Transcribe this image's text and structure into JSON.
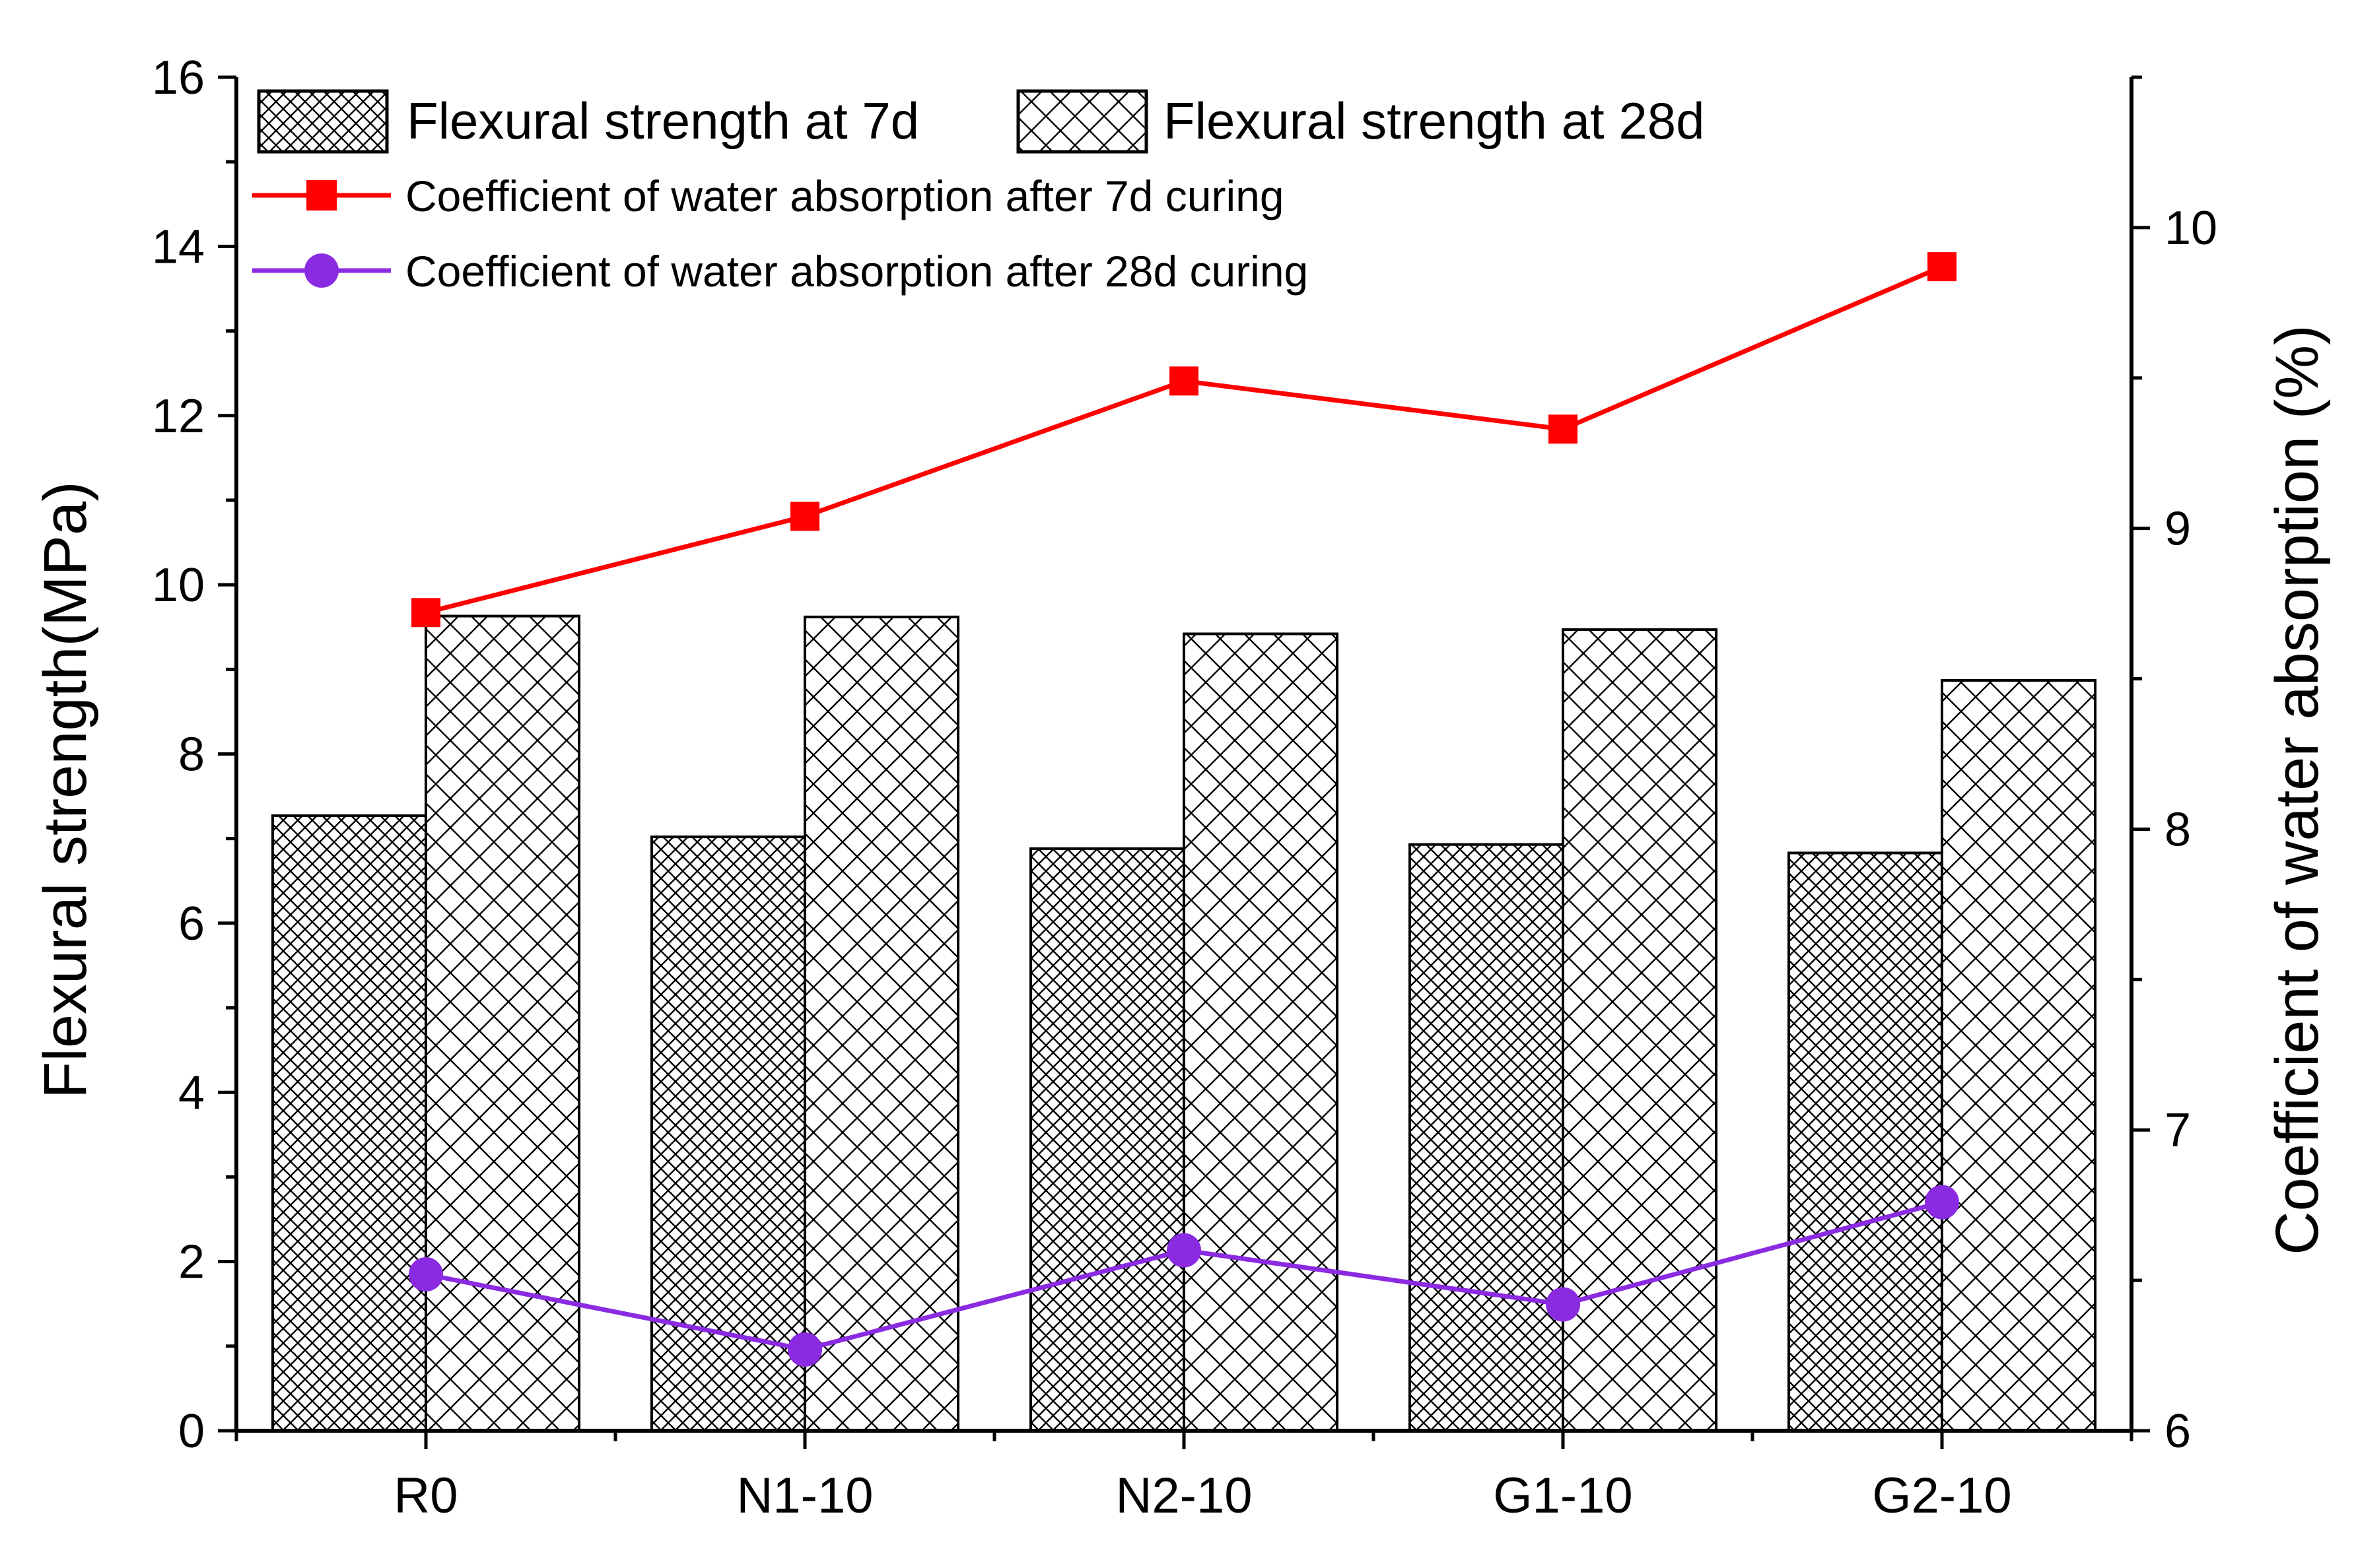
{
  "chart_data": {
    "type": "bar",
    "categories": [
      "R0",
      "N1-10",
      "N2-10",
      "G1-10",
      "G2-10"
    ],
    "series": [
      {
        "name": "Flexural strength at 7d",
        "kind": "bar",
        "axis": "left",
        "pattern": "dense-crosshatch",
        "values": [
          7.27,
          7.02,
          6.88,
          6.93,
          6.83
        ]
      },
      {
        "name": "Flexural strength at 28d",
        "kind": "bar",
        "axis": "left",
        "pattern": "open-crosshatch",
        "values": [
          9.63,
          9.62,
          9.42,
          9.47,
          8.87
        ]
      },
      {
        "name": "Coefficient of water absorption after 7d curing",
        "kind": "line",
        "axis": "right",
        "marker": "square",
        "color": "#ff0000",
        "values": [
          8.72,
          9.04,
          9.49,
          9.33,
          9.87
        ]
      },
      {
        "name": "Coefficient of water absorption after 28d curing",
        "kind": "line",
        "axis": "right",
        "marker": "circle",
        "color": "#8a2be2",
        "values": [
          6.52,
          6.27,
          6.6,
          6.42,
          6.76
        ]
      }
    ],
    "ylabel": "Flexural strength(MPa)",
    "y2label": "Coefficient of water absorption (%)",
    "ylim": [
      0,
      16
    ],
    "y2lim": [
      6,
      10.5
    ],
    "yticks": [
      "0",
      "2",
      "4",
      "6",
      "8",
      "10",
      "12",
      "14",
      "16"
    ],
    "y2ticks": [
      "6",
      "7",
      "8",
      "9",
      "10"
    ],
    "legend_position": "top-left",
    "grid": false
  }
}
